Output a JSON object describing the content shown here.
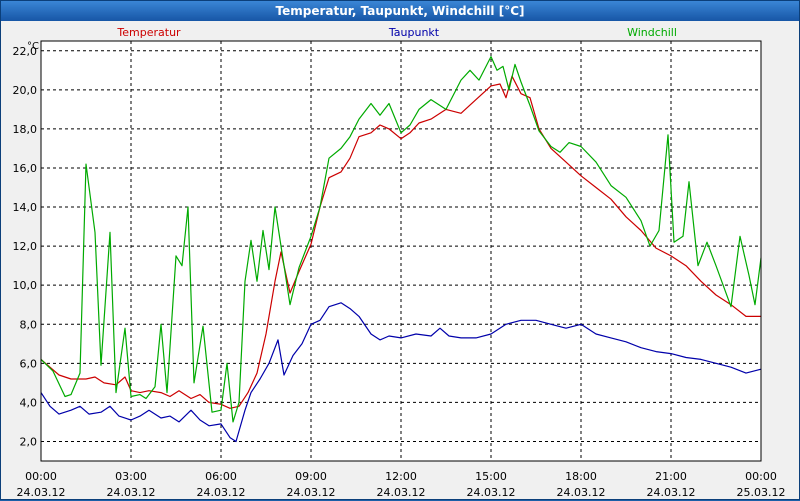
{
  "window": {
    "title": "Temperatur, Taupunkt, Windchill [°C]"
  },
  "chart_data": {
    "type": "line",
    "title": "Temperatur, Taupunkt, Windchill [°C]",
    "ylabel": "°C",
    "ylim": [
      1.0,
      22.5
    ],
    "yticks": [
      "2,0",
      "4,0",
      "6,0",
      "8,0",
      "10,0",
      "12,0",
      "14,0",
      "16,0",
      "18,0",
      "20,0",
      "22,0"
    ],
    "ytick_values": [
      2,
      4,
      6,
      8,
      10,
      12,
      14,
      16,
      18,
      20,
      22
    ],
    "xlim": [
      0,
      24
    ],
    "xticks": [
      {
        "time": "00:00",
        "date": "24.03.12"
      },
      {
        "time": "03:00",
        "date": "24.03.12"
      },
      {
        "time": "06:00",
        "date": "24.03.12"
      },
      {
        "time": "09:00",
        "date": "24.03.12"
      },
      {
        "time": "12:00",
        "date": "24.03.12"
      },
      {
        "time": "15:00",
        "date": "24.03.12"
      },
      {
        "time": "18:00",
        "date": "24.03.12"
      },
      {
        "time": "21:00",
        "date": "24.03.12"
      },
      {
        "time": "00:00",
        "date": "25.03.12"
      }
    ],
    "grid": true,
    "legend": "top",
    "series": [
      {
        "name": "Temperatur",
        "color": "#cc0000",
        "points": [
          [
            0,
            6.2
          ],
          [
            0.3,
            5.8
          ],
          [
            0.6,
            5.4
          ],
          [
            1.0,
            5.2
          ],
          [
            1.5,
            5.2
          ],
          [
            1.8,
            5.3
          ],
          [
            2.1,
            5.0
          ],
          [
            2.5,
            4.9
          ],
          [
            2.8,
            5.3
          ],
          [
            3.0,
            4.6
          ],
          [
            3.3,
            4.5
          ],
          [
            3.6,
            4.6
          ],
          [
            4.0,
            4.5
          ],
          [
            4.3,
            4.3
          ],
          [
            4.6,
            4.6
          ],
          [
            5.0,
            4.2
          ],
          [
            5.3,
            4.4
          ],
          [
            5.6,
            4.0
          ],
          [
            6.0,
            3.9
          ],
          [
            6.3,
            3.7
          ],
          [
            6.6,
            3.8
          ],
          [
            6.9,
            4.5
          ],
          [
            7.2,
            5.5
          ],
          [
            7.5,
            7.5
          ],
          [
            7.8,
            10.2
          ],
          [
            8.0,
            11.7
          ],
          [
            8.3,
            9.6
          ],
          [
            8.6,
            10.7
          ],
          [
            9.0,
            12.1
          ],
          [
            9.3,
            14.0
          ],
          [
            9.6,
            15.5
          ],
          [
            10.0,
            15.8
          ],
          [
            10.3,
            16.5
          ],
          [
            10.6,
            17.6
          ],
          [
            11.0,
            17.8
          ],
          [
            11.3,
            18.2
          ],
          [
            11.6,
            18.0
          ],
          [
            12.0,
            17.5
          ],
          [
            12.3,
            17.8
          ],
          [
            12.6,
            18.3
          ],
          [
            13.0,
            18.5
          ],
          [
            13.5,
            19.0
          ],
          [
            14.0,
            18.8
          ],
          [
            14.5,
            19.5
          ],
          [
            15.0,
            20.2
          ],
          [
            15.3,
            20.3
          ],
          [
            15.5,
            19.6
          ],
          [
            15.7,
            20.7
          ],
          [
            16.0,
            19.8
          ],
          [
            16.3,
            19.6
          ],
          [
            16.6,
            18.0
          ],
          [
            17.0,
            17.0
          ],
          [
            17.5,
            16.3
          ],
          [
            18.0,
            15.6
          ],
          [
            18.5,
            15.0
          ],
          [
            19.0,
            14.4
          ],
          [
            19.5,
            13.5
          ],
          [
            20.0,
            12.8
          ],
          [
            20.5,
            11.9
          ],
          [
            21.0,
            11.5
          ],
          [
            21.5,
            11.0
          ],
          [
            22.0,
            10.2
          ],
          [
            22.5,
            9.5
          ],
          [
            23.0,
            9.0
          ],
          [
            23.5,
            8.4
          ],
          [
            24.0,
            8.4
          ]
        ]
      },
      {
        "name": "Taupunkt",
        "color": "#0000aa",
        "points": [
          [
            0,
            4.5
          ],
          [
            0.3,
            3.8
          ],
          [
            0.6,
            3.4
          ],
          [
            1.0,
            3.6
          ],
          [
            1.3,
            3.8
          ],
          [
            1.6,
            3.4
          ],
          [
            2.0,
            3.5
          ],
          [
            2.3,
            3.8
          ],
          [
            2.6,
            3.3
          ],
          [
            3.0,
            3.1
          ],
          [
            3.3,
            3.3
          ],
          [
            3.6,
            3.6
          ],
          [
            4.0,
            3.2
          ],
          [
            4.3,
            3.3
          ],
          [
            4.6,
            3.0
          ],
          [
            5.0,
            3.6
          ],
          [
            5.3,
            3.1
          ],
          [
            5.6,
            2.8
          ],
          [
            6.0,
            2.9
          ],
          [
            6.3,
            2.2
          ],
          [
            6.5,
            2.0
          ],
          [
            6.8,
            3.6
          ],
          [
            7.0,
            4.5
          ],
          [
            7.3,
            5.2
          ],
          [
            7.6,
            6.0
          ],
          [
            7.9,
            7.2
          ],
          [
            8.1,
            5.4
          ],
          [
            8.4,
            6.4
          ],
          [
            8.7,
            7.0
          ],
          [
            9.0,
            8.0
          ],
          [
            9.3,
            8.2
          ],
          [
            9.6,
            8.9
          ],
          [
            10.0,
            9.1
          ],
          [
            10.3,
            8.8
          ],
          [
            10.6,
            8.4
          ],
          [
            11.0,
            7.5
          ],
          [
            11.3,
            7.2
          ],
          [
            11.6,
            7.4
          ],
          [
            12.0,
            7.3
          ],
          [
            12.5,
            7.5
          ],
          [
            13.0,
            7.4
          ],
          [
            13.3,
            7.8
          ],
          [
            13.6,
            7.4
          ],
          [
            14.0,
            7.3
          ],
          [
            14.5,
            7.3
          ],
          [
            15.0,
            7.5
          ],
          [
            15.5,
            8.0
          ],
          [
            16.0,
            8.2
          ],
          [
            16.5,
            8.2
          ],
          [
            17.0,
            8.0
          ],
          [
            17.5,
            7.8
          ],
          [
            18.0,
            8.0
          ],
          [
            18.5,
            7.5
          ],
          [
            19.0,
            7.3
          ],
          [
            19.5,
            7.1
          ],
          [
            20.0,
            6.8
          ],
          [
            20.5,
            6.6
          ],
          [
            21.0,
            6.5
          ],
          [
            21.5,
            6.3
          ],
          [
            22.0,
            6.2
          ],
          [
            22.5,
            6.0
          ],
          [
            23.0,
            5.8
          ],
          [
            23.5,
            5.5
          ],
          [
            24.0,
            5.7
          ]
        ]
      },
      {
        "name": "Windchill",
        "color": "#00aa00",
        "points": [
          [
            0,
            6.2
          ],
          [
            0.4,
            5.6
          ],
          [
            0.8,
            4.3
          ],
          [
            1.0,
            4.4
          ],
          [
            1.3,
            5.5
          ],
          [
            1.5,
            16.2
          ],
          [
            1.8,
            12.7
          ],
          [
            2.0,
            5.9
          ],
          [
            2.3,
            12.7
          ],
          [
            2.5,
            4.5
          ],
          [
            2.8,
            7.8
          ],
          [
            3.0,
            4.3
          ],
          [
            3.3,
            4.4
          ],
          [
            3.5,
            4.2
          ],
          [
            3.8,
            4.8
          ],
          [
            4.0,
            8.0
          ],
          [
            4.2,
            4.5
          ],
          [
            4.5,
            11.5
          ],
          [
            4.7,
            11.0
          ],
          [
            4.9,
            14.0
          ],
          [
            5.1,
            5.0
          ],
          [
            5.4,
            7.9
          ],
          [
            5.7,
            3.5
          ],
          [
            6.0,
            3.6
          ],
          [
            6.2,
            6.0
          ],
          [
            6.4,
            3.0
          ],
          [
            6.6,
            4.0
          ],
          [
            6.8,
            10.2
          ],
          [
            7.0,
            12.3
          ],
          [
            7.2,
            10.2
          ],
          [
            7.4,
            12.8
          ],
          [
            7.6,
            10.8
          ],
          [
            7.8,
            14.0
          ],
          [
            8.0,
            12.0
          ],
          [
            8.3,
            9.0
          ],
          [
            8.6,
            10.9
          ],
          [
            9.0,
            12.5
          ],
          [
            9.3,
            14.0
          ],
          [
            9.6,
            16.5
          ],
          [
            10.0,
            17.0
          ],
          [
            10.3,
            17.6
          ],
          [
            10.6,
            18.5
          ],
          [
            11.0,
            19.3
          ],
          [
            11.3,
            18.7
          ],
          [
            11.6,
            19.3
          ],
          [
            12.0,
            17.8
          ],
          [
            12.3,
            18.2
          ],
          [
            12.6,
            19.0
          ],
          [
            13.0,
            19.5
          ],
          [
            13.5,
            19.0
          ],
          [
            14.0,
            20.5
          ],
          [
            14.3,
            21.0
          ],
          [
            14.6,
            20.5
          ],
          [
            15.0,
            21.7
          ],
          [
            15.2,
            21.0
          ],
          [
            15.4,
            21.2
          ],
          [
            15.6,
            20.0
          ],
          [
            15.8,
            21.3
          ],
          [
            16.0,
            20.4
          ],
          [
            16.3,
            19.2
          ],
          [
            16.6,
            17.9
          ],
          [
            17.0,
            17.1
          ],
          [
            17.3,
            16.8
          ],
          [
            17.6,
            17.3
          ],
          [
            18.0,
            17.1
          ],
          [
            18.5,
            16.3
          ],
          [
            19.0,
            15.1
          ],
          [
            19.5,
            14.5
          ],
          [
            20.0,
            13.3
          ],
          [
            20.3,
            12.0
          ],
          [
            20.6,
            12.8
          ],
          [
            20.9,
            17.7
          ],
          [
            21.1,
            12.2
          ],
          [
            21.4,
            12.5
          ],
          [
            21.6,
            15.3
          ],
          [
            21.9,
            11.0
          ],
          [
            22.2,
            12.2
          ],
          [
            22.5,
            11.0
          ],
          [
            23.0,
            8.9
          ],
          [
            23.3,
            12.5
          ],
          [
            23.6,
            10.5
          ],
          [
            23.8,
            9.0
          ],
          [
            24.0,
            11.4
          ]
        ]
      }
    ]
  }
}
